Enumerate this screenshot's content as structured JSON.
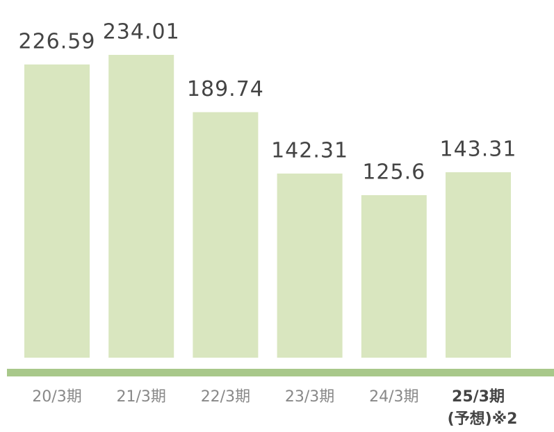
{
  "chart_data": {
    "type": "bar",
    "categories": [
      "20/3期",
      "21/3期",
      "22/3期",
      "23/3期",
      "24/3期",
      "25/3期"
    ],
    "category_note": "(予想)※2",
    "values": [
      226.59,
      234.01,
      189.74,
      142.31,
      125.6,
      143.31
    ],
    "color": "#d9e6bf"
  }
}
